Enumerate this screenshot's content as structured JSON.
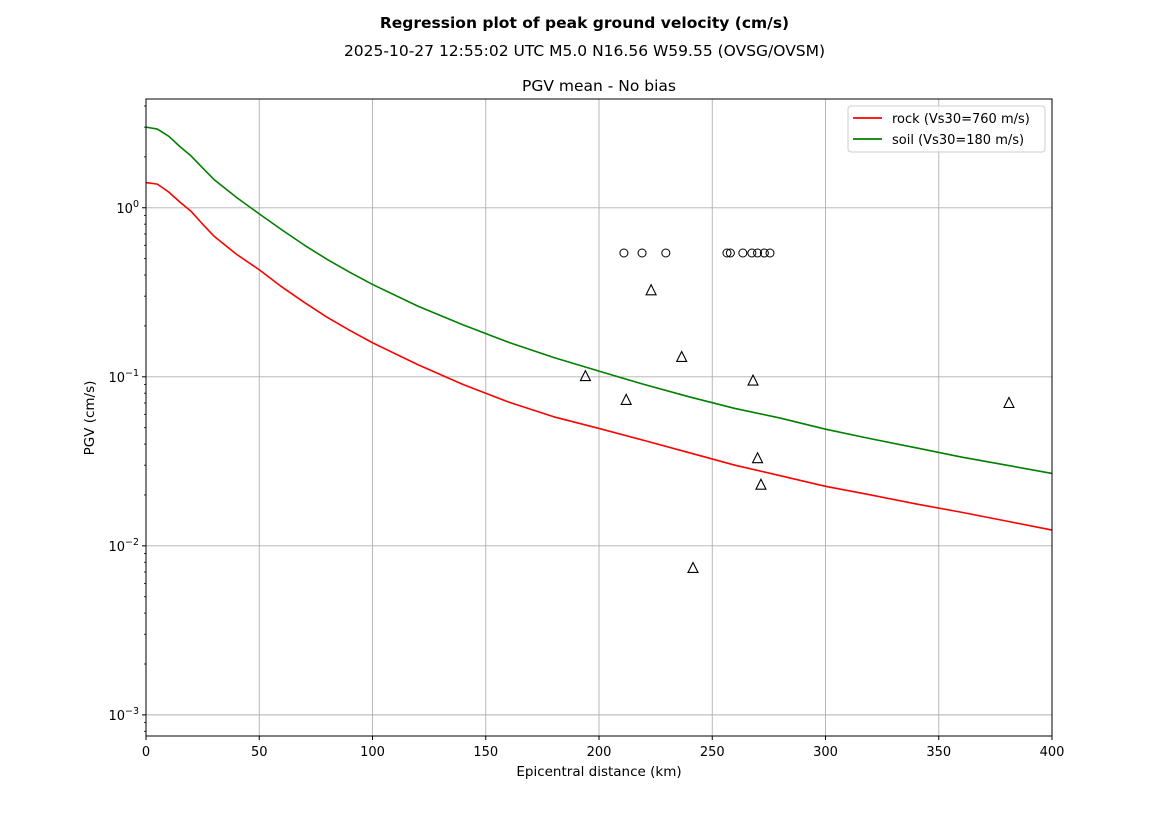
{
  "figure": {
    "suptitle": "Regression plot of peak ground velocity (cm/s)",
    "subtitle": "2025-10-27 12:55:02 UTC M5.0 N16.56 W59.55 (OVSG/OVSM)"
  },
  "chart_data": {
    "type": "scatter",
    "title": "PGV mean - No bias",
    "xlabel": "Epicentral distance (km)",
    "ylabel": "PGV (cm/s)",
    "xlim": [
      0,
      400
    ],
    "ylim": [
      0.00075,
      4.4
    ],
    "yscale": "log",
    "grid": true,
    "legend_position": "top-right",
    "x_ticks": [
      {
        "value": 0,
        "label": "0"
      },
      {
        "value": 50,
        "label": "50"
      },
      {
        "value": 100,
        "label": "100"
      },
      {
        "value": 150,
        "label": "150"
      },
      {
        "value": 200,
        "label": "200"
      },
      {
        "value": 250,
        "label": "250"
      },
      {
        "value": 300,
        "label": "300"
      },
      {
        "value": 350,
        "label": "350"
      },
      {
        "value": 400,
        "label": "400"
      }
    ],
    "y_ticks": [
      {
        "value": 0.001,
        "base": "10",
        "exp": "−3"
      },
      {
        "value": 0.01,
        "base": "10",
        "exp": "−2"
      },
      {
        "value": 0.1,
        "base": "10",
        "exp": "−1"
      },
      {
        "value": 1,
        "base": "10",
        "exp": "0"
      }
    ],
    "curves": [
      {
        "name": "rock (Vs30=760 m/s)",
        "color": "#ff0000",
        "points": [
          [
            0,
            1.41
          ],
          [
            5,
            1.38
          ],
          [
            10,
            1.24
          ],
          [
            15,
            1.08
          ],
          [
            20,
            0.95
          ],
          [
            25,
            0.8
          ],
          [
            30,
            0.68
          ],
          [
            40,
            0.53
          ],
          [
            50,
            0.43
          ],
          [
            60,
            0.34
          ],
          [
            70,
            0.275
          ],
          [
            80,
            0.225
          ],
          [
            90,
            0.188
          ],
          [
            100,
            0.159
          ],
          [
            120,
            0.118
          ],
          [
            140,
            0.09
          ],
          [
            160,
            0.071
          ],
          [
            180,
            0.058
          ],
          [
            200,
            0.0495
          ],
          [
            220,
            0.042
          ],
          [
            240,
            0.0355
          ],
          [
            260,
            0.03
          ],
          [
            280,
            0.026
          ],
          [
            300,
            0.0225
          ],
          [
            320,
            0.02
          ],
          [
            340,
            0.0177
          ],
          [
            360,
            0.0158
          ],
          [
            380,
            0.014
          ],
          [
            400,
            0.0124
          ]
        ]
      },
      {
        "name": "soil (Vs30=180 m/s)",
        "color": "#008000",
        "points": [
          [
            0,
            3.0
          ],
          [
            5,
            2.92
          ],
          [
            10,
            2.65
          ],
          [
            15,
            2.3
          ],
          [
            20,
            2.02
          ],
          [
            25,
            1.72
          ],
          [
            30,
            1.47
          ],
          [
            40,
            1.15
          ],
          [
            50,
            0.92
          ],
          [
            60,
            0.74
          ],
          [
            70,
            0.6
          ],
          [
            80,
            0.495
          ],
          [
            90,
            0.415
          ],
          [
            100,
            0.352
          ],
          [
            120,
            0.262
          ],
          [
            140,
            0.203
          ],
          [
            160,
            0.16
          ],
          [
            180,
            0.13
          ],
          [
            200,
            0.108
          ],
          [
            220,
            0.09
          ],
          [
            240,
            0.076
          ],
          [
            260,
            0.065
          ],
          [
            280,
            0.057
          ],
          [
            300,
            0.049
          ],
          [
            320,
            0.043
          ],
          [
            340,
            0.038
          ],
          [
            360,
            0.0335
          ],
          [
            380,
            0.03
          ],
          [
            400,
            0.0268
          ]
        ]
      }
    ],
    "markers": {
      "circles": [
        [
          211,
          0.54
        ],
        [
          219,
          0.54
        ],
        [
          229.5,
          0.54
        ],
        [
          256.5,
          0.54
        ],
        [
          258,
          0.54
        ],
        [
          263.5,
          0.54
        ],
        [
          267.5,
          0.54
        ],
        [
          270,
          0.54
        ],
        [
          273,
          0.54
        ],
        [
          275.5,
          0.54
        ]
      ],
      "triangles": [
        [
          194,
          0.101
        ],
        [
          212,
          0.073
        ],
        [
          223,
          0.325
        ],
        [
          236.5,
          0.131
        ],
        [
          241.5,
          0.0074
        ],
        [
          268,
          0.095
        ],
        [
          270,
          0.033
        ],
        [
          271.5,
          0.023
        ],
        [
          381,
          0.07
        ]
      ]
    }
  }
}
